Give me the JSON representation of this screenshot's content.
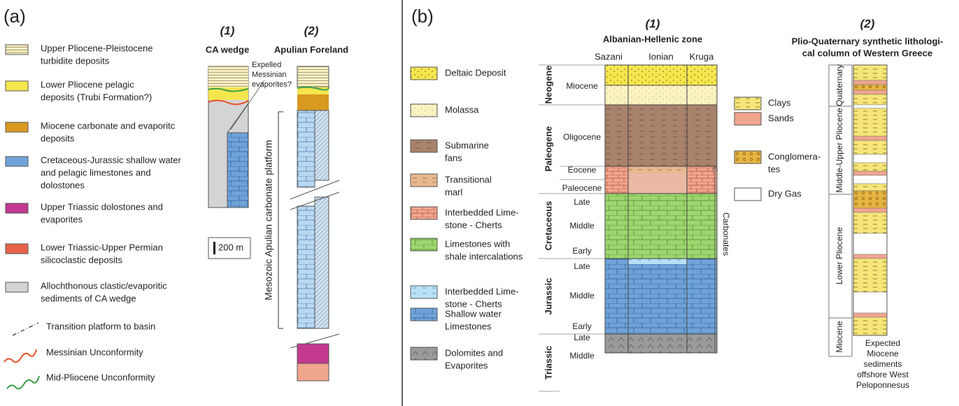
{
  "panel_a": {
    "label": "(a)",
    "legend": [
      {
        "lines": [
          "Upper Pliocene-Pleistocene",
          "turbidite deposits"
        ]
      },
      {
        "lines": [
          "Lower Pliocene pelagic",
          "deposits (Trubi Formation?)"
        ]
      },
      {
        "lines": [
          "Miocene carbonate and evaporitc",
          "deposits"
        ]
      },
      {
        "lines": [
          "Cretaceous-Jurassic shallow water",
          "and pelagic limestones and",
          "dolostones"
        ]
      },
      {
        "lines": [
          "Upper Triassic dolostones and",
          "evaporites"
        ]
      },
      {
        "lines": [
          "Lower Triassic-Upper Permian",
          "silicoclastic deposits"
        ]
      },
      {
        "lines": [
          "Allochthonous clastic/evaporitic",
          "sediments  of CA wedge"
        ]
      },
      {
        "lines": [
          "Transition platform to basin"
        ]
      },
      {
        "lines": [
          "Messinian Unconformity"
        ]
      },
      {
        "lines": [
          "Mid-Pliocene Unconformity"
        ]
      }
    ],
    "columns": [
      {
        "number": "(1)",
        "title": "CA wedge"
      },
      {
        "number": "(2)",
        "title": "Apulian Foreland"
      }
    ],
    "annotation": [
      "Expelled",
      "Messinian",
      "evaporites?"
    ],
    "platform_label": "Mesozoic Apulian carbonate platform",
    "scale": "200 m"
  },
  "panel_b": {
    "label": "(b)",
    "legend": [
      {
        "lines": [
          "Deltaic Deposit"
        ]
      },
      {
        "lines": [
          "Molassa"
        ]
      },
      {
        "lines": [
          "Submarine",
          "fans"
        ]
      },
      {
        "lines": [
          "Transitional",
          "marl"
        ]
      },
      {
        "lines": [
          "Interbedded Lime-",
          "stone - Cherts"
        ]
      },
      {
        "lines": [
          "Limestones with",
          "shale intercalations"
        ]
      },
      {
        "lines": [
          "Interbedded Lime-",
          "stone - Cherts"
        ]
      },
      {
        "lines": [
          "Shallow water",
          "Limestones"
        ]
      },
      {
        "lines": [
          "Dolomites and",
          "Evaporites"
        ]
      }
    ],
    "column1": {
      "number": "(1)",
      "title": "Albanian-Hellenic zone",
      "subcolumns": [
        "Sazani",
        "Ionian",
        "Kruga"
      ],
      "periods": [
        "Neogene",
        "Paleogene",
        "Cretaceous",
        "Jurassic",
        "Triassic"
      ],
      "epochs": [
        "Miocene",
        "Oligocene",
        "Eocene",
        "Paleocene",
        "Late",
        "Middle",
        "Early",
        "Late",
        "Middle",
        "Early",
        "Late",
        "Middle"
      ],
      "bracket_label": "Carbonates"
    },
    "legend2": [
      {
        "lines": [
          "Clays"
        ]
      },
      {
        "lines": [
          "Sands"
        ]
      },
      {
        "lines": [
          "Conglomera-",
          "tes"
        ]
      },
      {
        "lines": [
          "Dry Gas"
        ]
      }
    ],
    "column2": {
      "number": "(2)",
      "title": [
        "Plio-Quaternary synthetic lithologi-",
        "cal column of Western Greece"
      ],
      "intervals": [
        "Quaternary",
        "Middle-Upper Pliocene",
        "Lower Pliocene",
        "Miocene"
      ],
      "note": [
        "Expected",
        "Miocene",
        "sediments",
        "offshore West",
        "Peloponnesus"
      ]
    }
  }
}
